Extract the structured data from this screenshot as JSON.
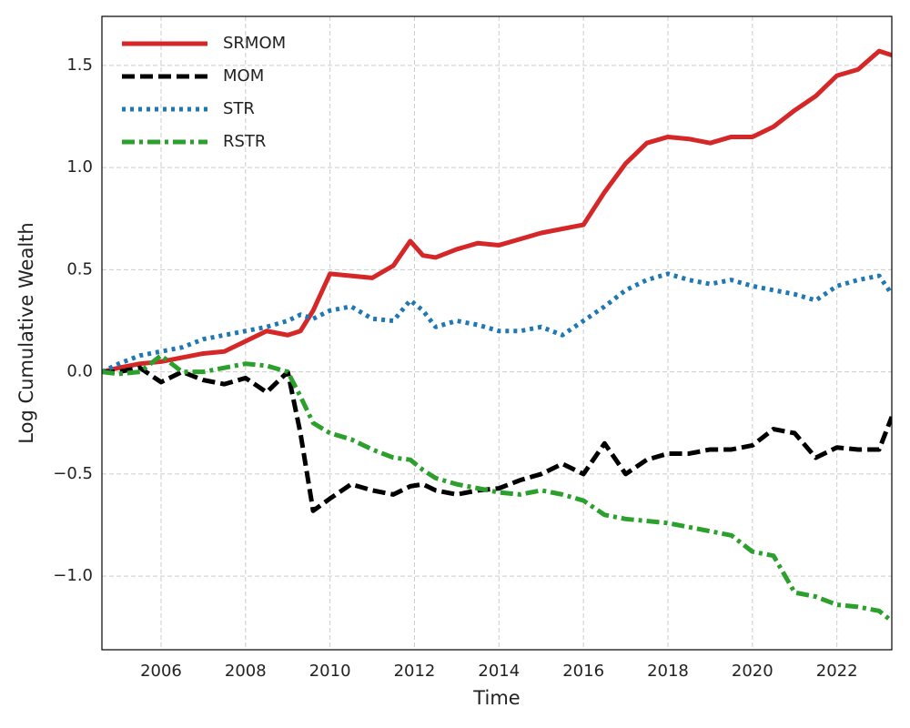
{
  "chart_data": {
    "type": "line",
    "x_label": "Time",
    "y_label": "Log Cumulative Wealth",
    "x": [
      2004.6,
      2005,
      2005.5,
      2006,
      2006.5,
      2007,
      2007.5,
      2008,
      2008.5,
      2009,
      2009.3,
      2009.6,
      2010,
      2010.5,
      2011,
      2011.5,
      2011.9,
      2012.2,
      2012.5,
      2013,
      2013.5,
      2014,
      2014.5,
      2015,
      2015.5,
      2016,
      2016.5,
      2017,
      2017.5,
      2018,
      2018.5,
      2019,
      2019.5,
      2020,
      2020.5,
      2021,
      2021.5,
      2022,
      2022.5,
      2023,
      2023.3
    ],
    "series": [
      {
        "name": "SRMOM",
        "color": "#d62728",
        "dash": "solid",
        "values": [
          0,
          0.02,
          0.04,
          0.05,
          0.07,
          0.09,
          0.1,
          0.15,
          0.2,
          0.18,
          0.2,
          0.3,
          0.48,
          0.47,
          0.46,
          0.52,
          0.64,
          0.57,
          0.56,
          0.6,
          0.63,
          0.62,
          0.65,
          0.68,
          0.7,
          0.72,
          0.88,
          1.02,
          1.12,
          1.15,
          1.14,
          1.12,
          1.15,
          1.15,
          1.2,
          1.28,
          1.35,
          1.45,
          1.48,
          1.57,
          1.55
        ]
      },
      {
        "name": "MOM",
        "color": "#000000",
        "dash": "dashed",
        "values": [
          0,
          0,
          0.02,
          -0.05,
          0,
          -0.04,
          -0.06,
          -0.03,
          -0.1,
          0,
          -0.3,
          -0.68,
          -0.62,
          -0.55,
          -0.58,
          -0.6,
          -0.56,
          -0.55,
          -0.58,
          -0.6,
          -0.58,
          -0.57,
          -0.53,
          -0.5,
          -0.45,
          -0.5,
          -0.35,
          -0.5,
          -0.43,
          -0.4,
          -0.4,
          -0.38,
          -0.38,
          -0.36,
          -0.28,
          -0.3,
          -0.42,
          -0.37,
          -0.38,
          -0.38,
          -0.22
        ]
      },
      {
        "name": "STR",
        "color": "#1f77b4",
        "dash": "dotted",
        "values": [
          0,
          0.04,
          0.08,
          0.1,
          0.12,
          0.16,
          0.18,
          0.2,
          0.22,
          0.25,
          0.28,
          0.26,
          0.3,
          0.32,
          0.26,
          0.25,
          0.35,
          0.3,
          0.22,
          0.25,
          0.23,
          0.2,
          0.2,
          0.22,
          0.18,
          0.25,
          0.32,
          0.4,
          0.45,
          0.48,
          0.45,
          0.43,
          0.45,
          0.42,
          0.4,
          0.38,
          0.35,
          0.42,
          0.45,
          0.47,
          0.38
        ]
      },
      {
        "name": "RSTR",
        "color": "#2ca02c",
        "dash": "dashdot",
        "values": [
          0,
          -0.01,
          0,
          0.08,
          0,
          0,
          0.02,
          0.04,
          0.03,
          0,
          -0.12,
          -0.25,
          -0.3,
          -0.33,
          -0.38,
          -0.42,
          -0.43,
          -0.48,
          -0.52,
          -0.55,
          -0.57,
          -0.59,
          -0.6,
          -0.58,
          -0.6,
          -0.63,
          -0.7,
          -0.72,
          -0.73,
          -0.74,
          -0.76,
          -0.78,
          -0.8,
          -0.88,
          -0.9,
          -1.08,
          -1.1,
          -1.14,
          -1.15,
          -1.17,
          -1.22
        ]
      }
    ],
    "xlim": [
      2004.6,
      2023.3
    ],
    "xticks": [
      2006,
      2008,
      2010,
      2012,
      2014,
      2016,
      2018,
      2020,
      2022
    ],
    "ylim": [
      -1.36,
      1.74
    ],
    "yticks": [
      {
        "value": -1.0,
        "label": "−1.0"
      },
      {
        "value": -0.5,
        "label": "−0.5"
      },
      {
        "value": 0,
        "label": "0.0"
      },
      {
        "value": 0.5,
        "label": "0.5"
      },
      {
        "value": 1.0,
        "label": "1.0"
      },
      {
        "value": 1.5,
        "label": "1.5"
      }
    ],
    "grid": true,
    "legend": "upper-left"
  }
}
